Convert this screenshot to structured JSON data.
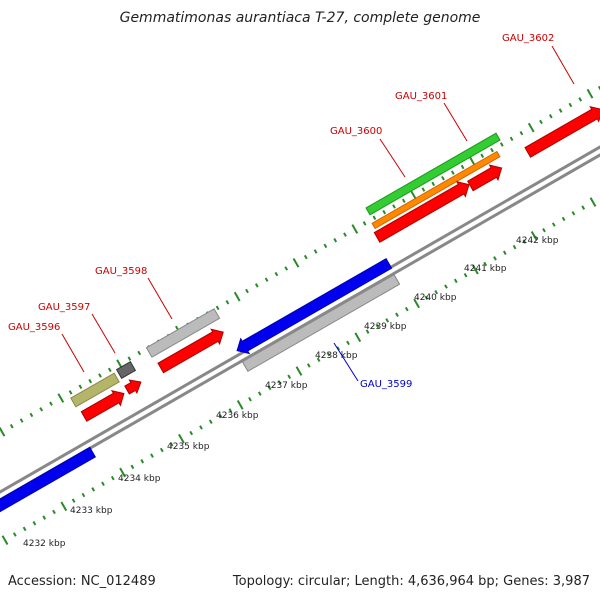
{
  "title": "Gemmatimonas aurantiaca T-27, complete genome",
  "footer": {
    "accession": "Accession: NC_012489",
    "summary": "Topology: circular; Length: 4,636,964 bp; Genes: 3,987"
  },
  "colors": {
    "backbone": "#888888",
    "ticks": "#2a8a2a",
    "forward_gene": "#ff0000",
    "reverse_gene": "#0000ee",
    "label_forward": "#cc0000",
    "label_reverse": "#0000cc",
    "green_feature": "#33cc33",
    "orange_feature": "#ff8800",
    "gray_feature": "#bbbbbb",
    "olive_feature": "#b5b56a",
    "dark_feature": "#666666"
  },
  "scale_labels": [
    "4232 kbp",
    "4233 kbp",
    "4234 kbp",
    "4235 kbp",
    "4236 kbp",
    "4237 kbp",
    "4238 kbp",
    "4239 kbp",
    "4240 kbp",
    "4241 kbp",
    "4242 kbp"
  ],
  "gene_labels": [
    {
      "id": "gau-3596",
      "text": "GAU_3596",
      "strand": "forward"
    },
    {
      "id": "gau-3597",
      "text": "GAU_3597",
      "strand": "forward"
    },
    {
      "id": "gau-3598",
      "text": "GAU_3598",
      "strand": "forward"
    },
    {
      "id": "gau-3599",
      "text": "GAU_3599",
      "strand": "reverse"
    },
    {
      "id": "gau-3600",
      "text": "GAU_3600",
      "strand": "forward"
    },
    {
      "id": "gau-3601",
      "text": "GAU_3601",
      "strand": "forward"
    },
    {
      "id": "gau-3602",
      "text": "GAU_3602",
      "strand": "forward"
    }
  ]
}
